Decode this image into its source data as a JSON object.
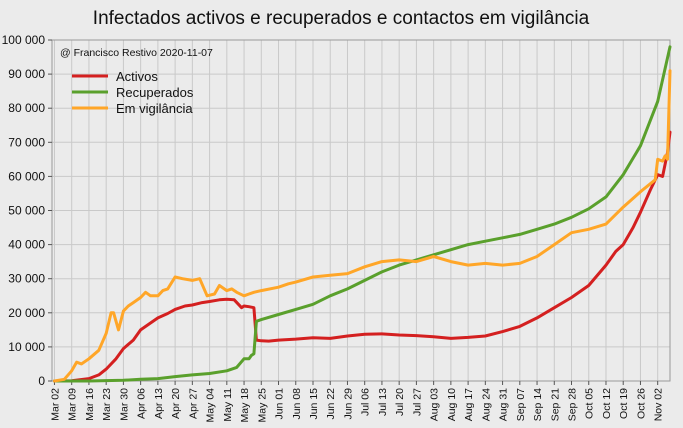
{
  "chart_data": {
    "type": "line",
    "title": "Infectados activos e recuperados e contactos em vigilância",
    "annotation": "@ Francisco Restivo 2020-11-07",
    "xlabel": "",
    "ylabel": "",
    "ylim": [
      0,
      100000
    ],
    "grid": true,
    "legend_position": "top-left",
    "y_ticks": [
      0,
      10000,
      20000,
      30000,
      40000,
      50000,
      60000,
      70000,
      80000,
      90000,
      100000
    ],
    "y_tick_labels": [
      "0",
      "10 000",
      "20 000",
      "30 000",
      "40 000",
      "50 000",
      "60 000",
      "70 000",
      "80 000",
      "90 000",
      "100 000"
    ],
    "x_start": "2020-03-01",
    "x_end": "2020-11-07",
    "x_ticks": [
      "2020-03-02",
      "2020-03-09",
      "2020-03-16",
      "2020-03-23",
      "2020-03-30",
      "2020-04-06",
      "2020-04-13",
      "2020-04-20",
      "2020-04-27",
      "2020-05-04",
      "2020-05-11",
      "2020-05-18",
      "2020-05-25",
      "2020-06-01",
      "2020-06-08",
      "2020-06-15",
      "2020-06-22",
      "2020-06-29",
      "2020-07-06",
      "2020-07-13",
      "2020-07-20",
      "2020-07-27",
      "2020-08-03",
      "2020-08-10",
      "2020-08-17",
      "2020-08-24",
      "2020-08-31",
      "2020-09-07",
      "2020-09-14",
      "2020-09-21",
      "2020-09-28",
      "2020-10-05",
      "2020-10-12",
      "2020-10-19",
      "2020-10-26",
      "2020-11-02"
    ],
    "x_tick_labels": [
      "Mar 02",
      "Mar 09",
      "Mar 16",
      "Mar 23",
      "Mar 30",
      "Apr 06",
      "Apr 13",
      "Apr 20",
      "Apr 27",
      "May 04",
      "May 11",
      "May 18",
      "May 25",
      "Jun 01",
      "Jun 08",
      "Jun 15",
      "Jun 22",
      "Jun 29",
      "Jul 06",
      "Jul 13",
      "Jul 20",
      "Jul 27",
      "Aug 03",
      "Aug 10",
      "Aug 17",
      "Aug 24",
      "Aug 31",
      "Sep 07",
      "Sep 14",
      "Sep 21",
      "Sep 28",
      "Oct 05",
      "Oct 12",
      "Oct 19",
      "Oct 26",
      "Nov 02"
    ],
    "series": [
      {
        "name": "Activos",
        "color": "#d42020",
        "x": [
          "2020-03-02",
          "2020-03-09",
          "2020-03-16",
          "2020-03-20",
          "2020-03-23",
          "2020-03-27",
          "2020-03-30",
          "2020-04-03",
          "2020-04-06",
          "2020-04-10",
          "2020-04-13",
          "2020-04-17",
          "2020-04-20",
          "2020-04-24",
          "2020-04-27",
          "2020-05-01",
          "2020-05-04",
          "2020-05-08",
          "2020-05-11",
          "2020-05-14",
          "2020-05-17",
          "2020-05-18",
          "2020-05-20",
          "2020-05-22",
          "2020-05-23",
          "2020-05-25",
          "2020-05-28",
          "2020-06-01",
          "2020-06-08",
          "2020-06-15",
          "2020-06-22",
          "2020-06-29",
          "2020-07-06",
          "2020-07-13",
          "2020-07-20",
          "2020-07-27",
          "2020-08-03",
          "2020-08-10",
          "2020-08-17",
          "2020-08-24",
          "2020-08-31",
          "2020-09-07",
          "2020-09-14",
          "2020-09-21",
          "2020-09-28",
          "2020-10-05",
          "2020-10-12",
          "2020-10-16",
          "2020-10-19",
          "2020-10-23",
          "2020-10-26",
          "2020-10-30",
          "2020-11-02",
          "2020-11-04",
          "2020-11-06",
          "2020-11-07"
        ],
        "y": [
          0,
          100,
          700,
          1800,
          3500,
          6500,
          9500,
          12000,
          15000,
          17000,
          18500,
          19800,
          21000,
          22000,
          22300,
          23000,
          23300,
          23800,
          24000,
          23800,
          21500,
          22000,
          21800,
          21500,
          12000,
          11800,
          11700,
          12000,
          12300,
          12700,
          12500,
          13200,
          13700,
          13800,
          13500,
          13300,
          13000,
          12500,
          12800,
          13200,
          14500,
          16000,
          18500,
          21500,
          24500,
          28000,
          34000,
          38000,
          40000,
          45000,
          49500,
          56000,
          60500,
          60000,
          67000,
          73000
        ]
      },
      {
        "name": "Recuperados",
        "color": "#5aa02c",
        "x": [
          "2020-03-02",
          "2020-03-16",
          "2020-03-30",
          "2020-04-06",
          "2020-04-13",
          "2020-04-20",
          "2020-04-27",
          "2020-05-04",
          "2020-05-11",
          "2020-05-15",
          "2020-05-18",
          "2020-05-20",
          "2020-05-21",
          "2020-05-22",
          "2020-05-23",
          "2020-05-25",
          "2020-06-01",
          "2020-06-08",
          "2020-06-15",
          "2020-06-22",
          "2020-06-29",
          "2020-07-06",
          "2020-07-13",
          "2020-07-20",
          "2020-07-27",
          "2020-08-03",
          "2020-08-10",
          "2020-08-17",
          "2020-08-24",
          "2020-08-31",
          "2020-09-07",
          "2020-09-14",
          "2020-09-21",
          "2020-09-28",
          "2020-10-05",
          "2020-10-12",
          "2020-10-19",
          "2020-10-26",
          "2020-11-02",
          "2020-11-07"
        ],
        "y": [
          0,
          0,
          200,
          500,
          700,
          1300,
          1800,
          2200,
          3000,
          4000,
          6500,
          6500,
          7500,
          8000,
          17500,
          18000,
          19500,
          21000,
          22500,
          25000,
          27000,
          29500,
          32000,
          34000,
          35500,
          37000,
          38500,
          40000,
          41000,
          42000,
          43000,
          44500,
          46000,
          48000,
          50500,
          54000,
          60500,
          69000,
          82000,
          98000
        ]
      },
      {
        "name": "Em vigilância",
        "color": "#ffa628",
        "x": [
          "2020-03-02",
          "2020-03-06",
          "2020-03-09",
          "2020-03-11",
          "2020-03-13",
          "2020-03-16",
          "2020-03-20",
          "2020-03-23",
          "2020-03-25",
          "2020-03-26",
          "2020-03-28",
          "2020-03-30",
          "2020-04-01",
          "2020-04-03",
          "2020-04-06",
          "2020-04-08",
          "2020-04-10",
          "2020-04-13",
          "2020-04-15",
          "2020-04-17",
          "2020-04-20",
          "2020-04-23",
          "2020-04-27",
          "2020-04-30",
          "2020-05-03",
          "2020-05-06",
          "2020-05-08",
          "2020-05-11",
          "2020-05-13",
          "2020-05-15",
          "2020-05-18",
          "2020-05-20",
          "2020-05-22",
          "2020-05-25",
          "2020-06-01",
          "2020-06-05",
          "2020-06-08",
          "2020-06-15",
          "2020-06-22",
          "2020-06-29",
          "2020-07-06",
          "2020-07-13",
          "2020-07-20",
          "2020-07-27",
          "2020-08-03",
          "2020-08-10",
          "2020-08-17",
          "2020-08-24",
          "2020-08-31",
          "2020-09-07",
          "2020-09-14",
          "2020-09-21",
          "2020-09-28",
          "2020-10-05",
          "2020-10-12",
          "2020-10-19",
          "2020-10-26",
          "2020-11-01",
          "2020-11-02",
          "2020-11-04",
          "2020-11-05",
          "2020-11-06",
          "2020-11-07"
        ],
        "y": [
          0,
          500,
          3000,
          5500,
          5000,
          6500,
          9000,
          14000,
          20000,
          20000,
          15000,
          20500,
          22000,
          23000,
          24500,
          26000,
          25000,
          25000,
          26500,
          27000,
          30500,
          30000,
          29500,
          30000,
          25000,
          25500,
          28000,
          26500,
          27000,
          26000,
          25000,
          25500,
          26000,
          26500,
          27500,
          28500,
          29000,
          30500,
          31000,
          31500,
          33500,
          35000,
          35500,
          35000,
          36500,
          35000,
          34000,
          34500,
          34000,
          34500,
          36500,
          40000,
          43500,
          44500,
          46000,
          51000,
          55500,
          59000,
          65000,
          64500,
          66000,
          65000,
          91000
        ]
      }
    ]
  }
}
